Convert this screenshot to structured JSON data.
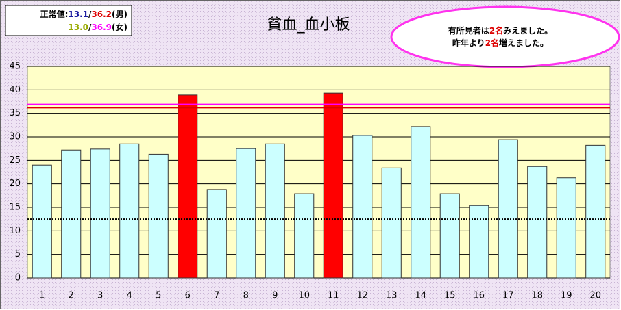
{
  "chart_data": {
    "type": "bar",
    "title": "貧血_血小板",
    "categories": [
      "1",
      "2",
      "3",
      "4",
      "5",
      "6",
      "7",
      "8",
      "9",
      "10",
      "11",
      "12",
      "13",
      "14",
      "15",
      "16",
      "17",
      "18",
      "19",
      "20"
    ],
    "values": [
      24.0,
      27.2,
      27.4,
      28.5,
      26.3,
      38.9,
      18.8,
      27.5,
      28.5,
      17.9,
      39.3,
      30.3,
      23.4,
      32.2,
      17.9,
      15.4,
      29.4,
      23.7,
      21.3,
      28.2
    ],
    "colors": [
      "#ccffff",
      "#ccffff",
      "#ccffff",
      "#ccffff",
      "#ccffff",
      "#ff0000",
      "#ccffff",
      "#ccffff",
      "#ccffff",
      "#ccffff",
      "#ff0000",
      "#ccffff",
      "#ccffff",
      "#ccffff",
      "#ccffff",
      "#ccffff",
      "#ccffff",
      "#ccffff",
      "#ccffff",
      "#ccffff"
    ],
    "ylim": [
      0,
      45
    ],
    "yticks": [
      0,
      5,
      10,
      15,
      20,
      25,
      30,
      35,
      40,
      45
    ],
    "grid": true,
    "reference_lines": [
      {
        "value": 36.9,
        "color": "#ff00ff",
        "dashed": false
      },
      {
        "value": 36.2,
        "color": "#dd0000",
        "dashed": false
      },
      {
        "value": 12.5,
        "color": "#000000",
        "dashed": true
      }
    ],
    "legend_lines": [
      [
        {
          "text": "正常値:",
          "color": "#000000"
        },
        {
          "text": "13.1",
          "color": "#1a1aa0"
        },
        {
          "text": "/",
          "color": "#000000"
        },
        {
          "text": "36.2",
          "color": "#dd0000"
        },
        {
          "text": "(男)",
          "color": "#000000"
        }
      ],
      [
        {
          "text": "13.0",
          "color": "#99aa00"
        },
        {
          "text": "/",
          "color": "#000000"
        },
        {
          "text": "36.9",
          "color": "#ff00ff"
        },
        {
          "text": "(女)",
          "color": "#000000"
        }
      ]
    ],
    "annotation_lines": [
      [
        {
          "text": "有所見者は",
          "color": "#000000"
        },
        {
          "text": "2名",
          "color": "#dd0000"
        },
        {
          "text": "みえました。",
          "color": "#000000"
        }
      ],
      [
        {
          "text": "昨年より",
          "color": "#000000"
        },
        {
          "text": "2名",
          "color": "#dd0000"
        },
        {
          "text": "増えました。",
          "color": "#000000"
        }
      ]
    ]
  }
}
